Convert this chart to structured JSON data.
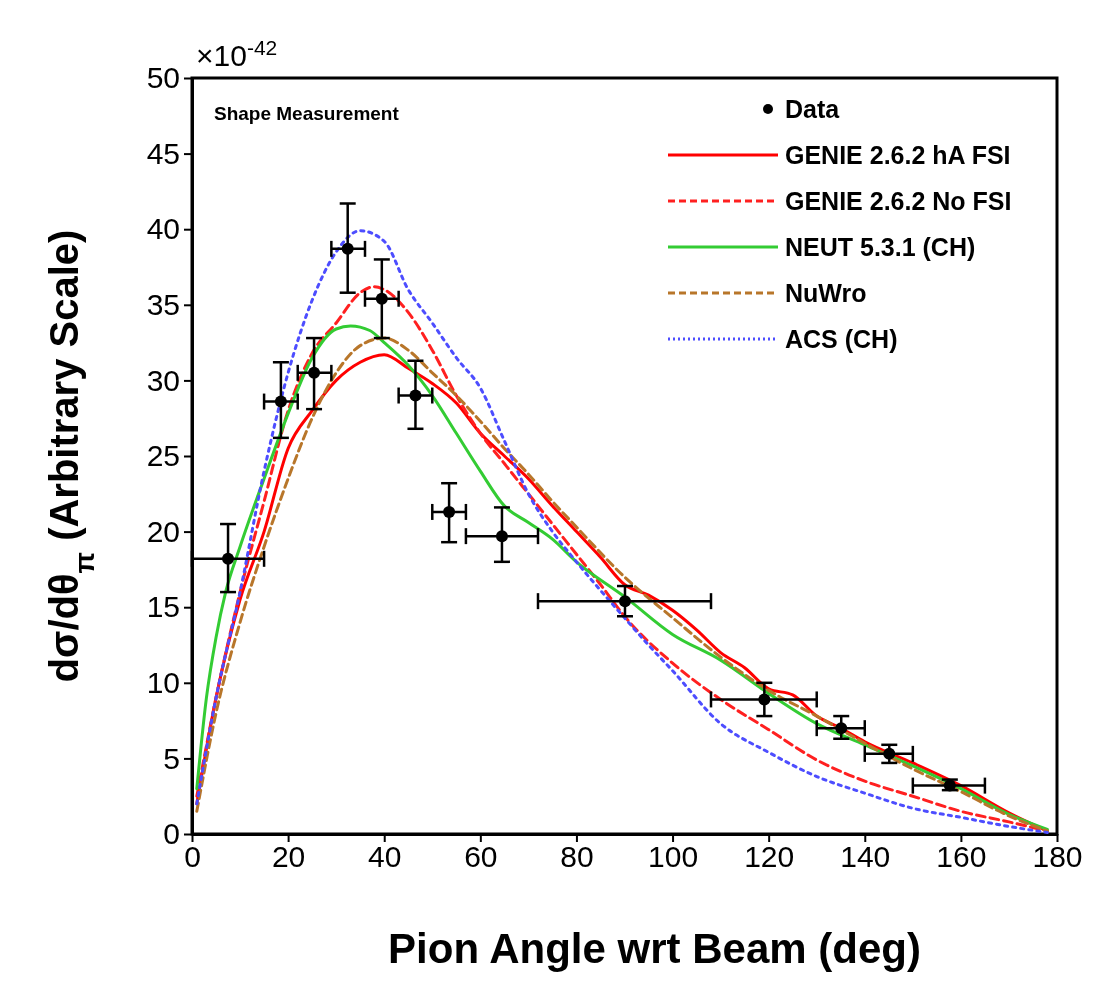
{
  "chart_data": {
    "type": "line",
    "xlabel": "Pion Angle wrt Beam (deg)",
    "ylabel": "dσ/dθ$_{π}$  (Arbitrary Scale)",
    "annotations": [
      "Shape Measurement",
      "×10$^{-42}$"
    ],
    "xlim": [
      0,
      180
    ],
    "xticks": [
      0,
      20,
      40,
      60,
      80,
      100,
      120,
      140,
      160,
      180
    ],
    "ylim": [
      0,
      50
    ],
    "yticks": [
      0,
      5,
      10,
      15,
      20,
      25,
      30,
      35,
      40,
      45,
      50
    ],
    "grid": false,
    "legend": "top right",
    "series": [
      {
        "name": "Data",
        "type": "scatter",
        "marker": "circle",
        "color": "#000000",
        "x": [
          7.5,
          18.5,
          25.4,
          32.4,
          39.5,
          46.5,
          53.5,
          64.5,
          90.1,
          119.1,
          135.1,
          145.1,
          157.7
        ],
        "values": [
          18.2,
          28.6,
          30.5,
          38.7,
          35.4,
          29.0,
          21.3,
          19.7,
          15.4,
          8.9,
          7.0,
          5.3,
          3.2
        ],
        "errors": [
          [
            16.0,
            20.5
          ],
          [
            26.2,
            31.2
          ],
          [
            28.1,
            32.8
          ],
          [
            35.8,
            41.7
          ],
          [
            32.8,
            38.0
          ],
          [
            26.8,
            31.3
          ],
          [
            19.3,
            23.2
          ],
          [
            18.0,
            21.6
          ],
          [
            14.4,
            16.4
          ],
          [
            7.8,
            10.0
          ],
          [
            6.3,
            7.8
          ],
          [
            4.7,
            5.9
          ],
          [
            2.9,
            3.6
          ]
        ],
        "xerrors": [
          [
            0,
            15
          ],
          [
            15,
            22
          ],
          [
            22,
            29
          ],
          [
            29,
            36
          ],
          [
            36,
            43
          ],
          [
            43,
            50
          ],
          [
            50,
            57
          ],
          [
            57,
            72
          ],
          [
            72,
            108
          ],
          [
            108,
            130
          ],
          [
            130,
            140
          ],
          [
            140,
            150
          ],
          [
            150,
            165
          ]
        ]
      },
      {
        "name": "GENIE 2.6.2 hA FSI",
        "line_style": "solid",
        "color": "#ff0000",
        "x": [
          1,
          5,
          10,
          15,
          20,
          25,
          30,
          35,
          40,
          45,
          50,
          55,
          60,
          65,
          70,
          75,
          80,
          85,
          90,
          95,
          100,
          105,
          110,
          115,
          120,
          125,
          130,
          135,
          140,
          150,
          160,
          170,
          178
        ],
        "values": [
          2,
          9,
          15.5,
          20,
          25.5,
          28,
          30,
          31.2,
          31.7,
          30.8,
          29.8,
          28.5,
          26.5,
          25,
          23.5,
          21.7,
          20,
          18.3,
          16.5,
          15.8,
          14.8,
          13.5,
          12,
          11,
          9.6,
          9.2,
          7.8,
          7,
          6.1,
          4.7,
          3.2,
          1.4,
          0.2
        ]
      },
      {
        "name": "GENIE 2.6.2 No FSI",
        "line_style": "dashed",
        "color": "#ff2020",
        "x": [
          1,
          5,
          10,
          15,
          20,
          25,
          30,
          35,
          38,
          40,
          45,
          50,
          55,
          60,
          65,
          70,
          75,
          80,
          85,
          90,
          100,
          110,
          120,
          130,
          140,
          150,
          160,
          170,
          178
        ],
        "values": [
          2.5,
          9,
          16,
          22,
          28,
          31.8,
          33.8,
          35.8,
          36.2,
          36,
          34.5,
          32,
          29,
          26.5,
          24.5,
          22.5,
          20.5,
          18.5,
          16.5,
          14.4,
          11.3,
          8.9,
          6.9,
          4.9,
          3.5,
          2.5,
          1.5,
          0.8,
          0.2
        ]
      },
      {
        "name": "NEUT 5.3.1 (CH)",
        "line_style": "solid",
        "color": "#33cc33",
        "x": [
          1,
          3,
          5,
          7,
          10,
          15,
          20,
          25,
          30,
          33,
          37,
          40,
          45,
          50,
          55,
          60,
          65,
          70,
          75,
          80,
          90,
          100,
          110,
          120,
          130,
          140,
          150,
          160,
          170,
          178
        ],
        "values": [
          3,
          9,
          13,
          16,
          19,
          23.5,
          27.8,
          31.5,
          33.4,
          33.6,
          33.3,
          32.5,
          31,
          29,
          26.5,
          24,
          21.7,
          20.6,
          19.5,
          18,
          15.7,
          13.2,
          11.5,
          9.3,
          7.3,
          5.9,
          4.5,
          3,
          1.3,
          0.3
        ]
      },
      {
        "name": "NuWro",
        "line_style": "dashed",
        "color": "#b8762a",
        "x": [
          1,
          5,
          10,
          15,
          20,
          25,
          30,
          35,
          40,
          45,
          50,
          55,
          60,
          65,
          70,
          75,
          80,
          90,
          100,
          110,
          120,
          130,
          140,
          150,
          160,
          170,
          178
        ],
        "values": [
          1.5,
          8,
          14,
          19,
          23.5,
          27.5,
          30.5,
          32.3,
          32.8,
          32,
          30.5,
          29,
          27.3,
          25.5,
          23.8,
          22,
          20.3,
          17,
          14.3,
          11.7,
          9.5,
          7.8,
          6,
          4.3,
          2.8,
          1.2,
          0.2
        ]
      },
      {
        "name": "ACS (CH)",
        "line_style": "dotted",
        "color": "#4d4dff",
        "x": [
          1,
          5,
          10,
          15,
          20,
          25,
          30,
          35,
          40,
          45,
          50,
          55,
          60,
          65,
          70,
          75,
          80,
          90,
          95,
          100,
          110,
          120,
          130,
          140,
          150,
          160,
          170,
          178
        ],
        "values": [
          2,
          9,
          16,
          24,
          30.5,
          35.3,
          38.5,
          39.9,
          39.2,
          36,
          33.8,
          31.5,
          29.5,
          26,
          22.5,
          20,
          18,
          14.3,
          12.5,
          10.8,
          7.3,
          5.4,
          3.8,
          2.7,
          1.7,
          1.1,
          0.5,
          0.1
        ]
      }
    ]
  }
}
